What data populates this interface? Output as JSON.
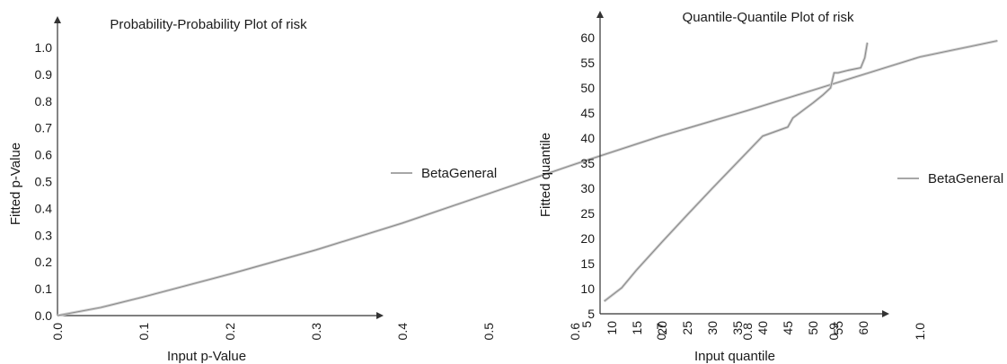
{
  "chart_data": [
    {
      "type": "line",
      "title": "Probability-Probability Plot of risk",
      "xlabel": "Input p-Value",
      "ylabel": "Fitted p-Value",
      "xlim": [
        0.0,
        1.1
      ],
      "ylim": [
        0.0,
        1.0
      ],
      "x_ticks": [
        "0.0",
        "0.1",
        "0.2",
        "0.3",
        "0.4",
        "0.5",
        "0.6",
        "0.7",
        "0.8",
        "0.9",
        "1.0"
      ],
      "y_ticks": [
        "0.0",
        "0.1",
        "0.2",
        "0.3",
        "0.4",
        "0.5",
        "0.6",
        "0.7",
        "0.8",
        "0.9",
        "1.0"
      ],
      "grid": false,
      "legend_position": "right",
      "series": [
        {
          "name": "BetaGeneral",
          "color": "#8a8a8a",
          "x": [
            0.0,
            0.05,
            0.1,
            0.2,
            0.3,
            0.4,
            0.5,
            0.6,
            0.7,
            0.8,
            0.9,
            1.0,
            1.09
          ],
          "y": [
            0.0,
            0.03,
            0.07,
            0.155,
            0.245,
            0.345,
            0.455,
            0.565,
            0.67,
            0.765,
            0.865,
            0.965,
            1.025
          ]
        }
      ]
    },
    {
      "type": "line",
      "title": "Quantile-Quantile Plot of risk",
      "xlabel": "Input quantile",
      "ylabel": "Fitted quantile",
      "xlim": [
        5,
        65
      ],
      "ylim": [
        5,
        60
      ],
      "x_ticks": [
        "5",
        "10",
        "15",
        "20",
        "25",
        "30",
        "35",
        "40",
        "45",
        "50",
        "55",
        "60"
      ],
      "y_ticks": [
        "5",
        "10",
        "15",
        "20",
        "25",
        "30",
        "35",
        "40",
        "45",
        "50",
        "55",
        "60"
      ],
      "grid": false,
      "legend_position": "right",
      "series": [
        {
          "name": "BetaGeneral",
          "color": "#8a8a8a",
          "x": [
            8.5,
            12,
            15,
            20,
            25,
            30,
            35,
            40,
            45,
            46,
            48,
            50,
            52,
            53.5,
            54.2,
            55,
            57,
            59.5,
            60.3,
            60.8
          ],
          "y": [
            7.5,
            10.2,
            13.8,
            19.3,
            24.7,
            30.0,
            35.2,
            40.4,
            42.2,
            44.0,
            45.5,
            47.0,
            48.6,
            50.0,
            53.0,
            53.0,
            53.5,
            54.0,
            56.0,
            59.0
          ]
        }
      ]
    }
  ]
}
